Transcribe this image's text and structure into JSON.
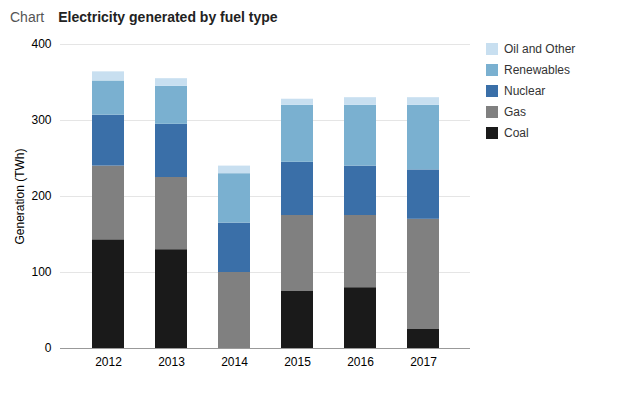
{
  "chart_data": {
    "type": "bar",
    "stacked": true,
    "title": "Electricity generated by fuel type",
    "annotations": [
      "Chart"
    ],
    "ylabel": "Generation (TWh)",
    "categories": [
      "2012",
      "2013",
      "2014",
      "2015",
      "2016",
      "2017"
    ],
    "series": [
      {
        "name": "Coal",
        "color": "#1a1a1a",
        "values": [
          143,
          130,
          0,
          75,
          80,
          25
        ]
      },
      {
        "name": "Gas",
        "color": "#808080",
        "values": [
          97,
          95,
          100,
          100,
          95,
          145
        ]
      },
      {
        "name": "Nuclear",
        "color": "#3a6fa8",
        "values": [
          67,
          70,
          65,
          70,
          65,
          65
        ]
      },
      {
        "name": "Renewables",
        "color": "#7ab0d0",
        "values": [
          45,
          50,
          65,
          75,
          80,
          85
        ]
      },
      {
        "name": "Oil and Other",
        "color": "#c8dff0",
        "values": [
          12,
          10,
          10,
          8,
          10,
          10
        ]
      }
    ],
    "ylim": [
      0,
      400
    ],
    "yticks": [
      0,
      100,
      200,
      300,
      400
    ],
    "grid": true,
    "legend": "right"
  }
}
